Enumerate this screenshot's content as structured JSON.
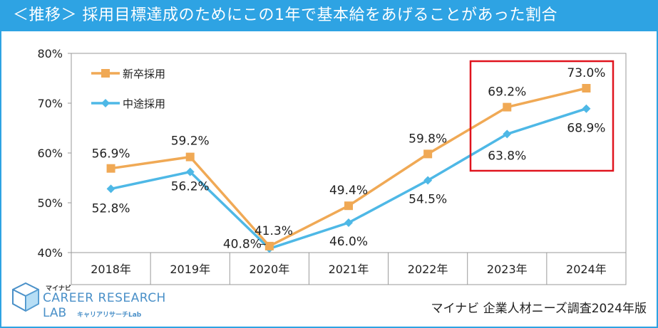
{
  "title": "＜推移＞ 採用目標達成のためにこの1年で基本給をあげることがあった割合",
  "source": "マイナビ 企業人材ニーズ調査2024年版",
  "logo": {
    "small": "マイナビ",
    "line1": "CAREER RESEARCH",
    "line2": "LAB",
    "sub": "キャリアリサーチLab"
  },
  "colors": {
    "accent": "#2ea3e3",
    "series_new_grad": "#f0a955",
    "series_mid_career": "#4eb8e6",
    "highlight": "#e0141e"
  },
  "chart_data": {
    "type": "line",
    "title": "＜推移＞ 採用目標達成のためにこの1年で基本給をあげることがあった割合",
    "categories": [
      "2018年",
      "2019年",
      "2020年",
      "2021年",
      "2022年",
      "2023年",
      "2024年"
    ],
    "series": [
      {
        "name": "新卒採用",
        "marker": "square",
        "values": [
          56.9,
          59.2,
          41.3,
          49.4,
          59.8,
          69.2,
          73.0
        ],
        "labels": [
          "56.9%",
          "59.2%",
          "41.3%",
          "49.4%",
          "59.8%",
          "69.2%",
          "73.0%"
        ]
      },
      {
        "name": "中途採用",
        "marker": "diamond",
        "values": [
          52.8,
          56.2,
          40.8,
          46.0,
          54.5,
          63.8,
          68.9
        ],
        "labels": [
          "52.8%",
          "56.2%",
          "40.8%",
          "46.0%",
          "54.5%",
          "63.8%",
          "68.9%"
        ]
      }
    ],
    "ylim": [
      40,
      80
    ],
    "yticks": [
      40,
      50,
      60,
      70,
      80
    ],
    "ytick_labels": [
      "40%",
      "50%",
      "60%",
      "70%",
      "80%"
    ],
    "xlabel": "",
    "ylabel": "",
    "grid": false,
    "legend": "top-left",
    "annotation": "red box highlighting 2023年–2024年"
  }
}
